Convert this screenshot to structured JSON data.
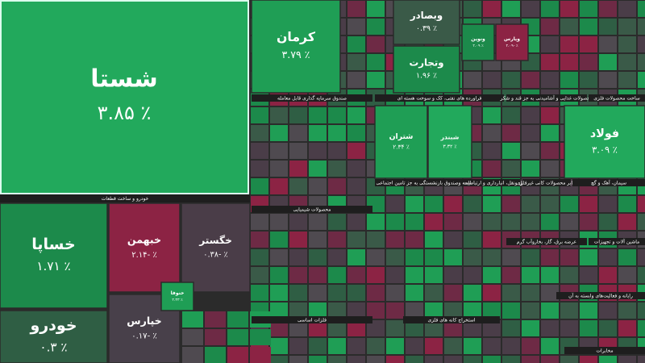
{
  "chart_data": {
    "type": "treemap",
    "sectors": [
      "خودرو و ساخت قطعات",
      "صندوق سرمایه گذاری قابل معامله",
      "فراورده های نفتی، کک و سوخت هسته ای",
      "محصولات غذایی و آشامیدنی به جز قند و شکر",
      "ساخت محصولات فلزی",
      "محصولات شیمیایی",
      "بیمه وصندوق بازنشستگی به جز تامین اجتماعی",
      "حمل ونقل، انبارداری و ارتباطات",
      "سایر محصولات کانی غیرفلزی",
      "سیمان، آهک و گچ",
      "عرضه برق، گاز، بخاروآب گرم",
      "فلزات اساسی",
      "رایانه و فعالیت‌های وابسته به آن",
      "استخراج کانه های فلزی",
      "مخابرات",
      "ماشین آلات و تجهیزات"
    ],
    "items": [
      {
        "name": "شستا",
        "value": 3.85,
        "value_label": "۳.۸۵ ٪",
        "color": "#22a95c"
      },
      {
        "name": "کرمان",
        "value": 3.79,
        "value_label": "۳.۷۹ ٪",
        "color": "#1f9e55"
      },
      {
        "name": "وبصادر",
        "value": 0.39,
        "value_label": "۰.۳۹ ٪",
        "color": "#3a5a48"
      },
      {
        "name": "وتجارت",
        "value": 1.96,
        "value_label": "۱.۹۶ ٪",
        "color": "#1c8a4b"
      },
      {
        "name": "خساپا",
        "value": 1.71,
        "value_label": "۱.۷۱ ٪",
        "color": "#1c8a4b"
      },
      {
        "name": "خبهمن",
        "value": -2.14,
        "value_label": "۲.۱۴- ٪",
        "color": "#8c2344"
      },
      {
        "name": "خگستر",
        "value": -0.38,
        "value_label": "۰.۳۸- ٪",
        "color": "#4a3d48"
      },
      {
        "name": "خودرو",
        "value": 0.3,
        "value_label": "۰.۳ ٪",
        "color": "#2f5e44"
      },
      {
        "name": "خپارس",
        "value": -0.17,
        "value_label": "۰.۱۷- ٪",
        "color": "#48404a"
      },
      {
        "name": "شتران",
        "value": 2.34,
        "value_label": "۲.۳۴ ٪",
        "color": "#1f9e55"
      },
      {
        "name": "شبندر",
        "value": 3.32,
        "value_label": "۳.۳۲ ٪",
        "color": "#22a95c"
      },
      {
        "name": "فولاد",
        "value": 3.09,
        "value_label": "۳.۰۹ ٪",
        "color": "#22a95c"
      },
      {
        "name": "ونوین",
        "value": 2.09,
        "value_label": "۲.۰۹ ٪",
        "color": "#1c8a4b"
      },
      {
        "name": "وپارس",
        "value": -2.09,
        "value_label": "۲.۰۹- ٪",
        "color": "#8c2344"
      },
      {
        "name": "خنوفا",
        "value": 2.33,
        "value_label": "۲.۳۳ ٪",
        "color": "#1f9e55"
      }
    ]
  }
}
